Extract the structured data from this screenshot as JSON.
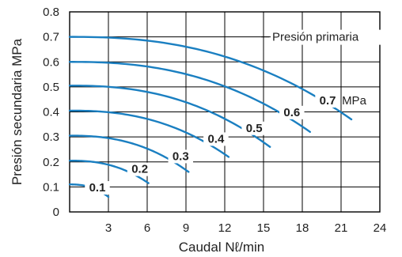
{
  "chart_data": {
    "type": "line",
    "xlabel": "Caudal Nℓ/min",
    "ylabel": "Presión secundaria MPa",
    "xlim": [
      0,
      24
    ],
    "ylim": [
      0,
      0.8
    ],
    "x_ticks": [
      "3",
      "6",
      "9",
      "12",
      "15",
      "18",
      "21",
      "24"
    ],
    "y_ticks": [
      "0",
      "0.1",
      "0.2",
      "0.3",
      "0.4",
      "0.5",
      "0.6",
      "0.7",
      "0.8"
    ],
    "grid": true,
    "annotation": "Presión primaria",
    "unit_label": "MPa",
    "colors": {
      "line": "#1a7fc1",
      "grid": "#000000"
    },
    "series": [
      {
        "name": "0.1",
        "label": "0.1",
        "start": 0.11,
        "x_end": 3.0,
        "y_end": 0.06
      },
      {
        "name": "0.2",
        "label": "0.2",
        "start": 0.205,
        "x_end": 6.1,
        "y_end": 0.115
      },
      {
        "name": "0.3",
        "label": "0.3",
        "start": 0.305,
        "x_end": 9.2,
        "y_end": 0.16
      },
      {
        "name": "0.4",
        "label": "0.4",
        "start": 0.405,
        "x_end": 12.3,
        "y_end": 0.22
      },
      {
        "name": "0.5",
        "label": "0.5",
        "start": 0.505,
        "x_end": 15.5,
        "y_end": 0.26
      },
      {
        "name": "0.6",
        "label": "0.6",
        "start": 0.6,
        "x_end": 18.6,
        "y_end": 0.32
      },
      {
        "name": "0.7",
        "label": "0.7",
        "start": 0.7,
        "x_end": 21.8,
        "y_end": 0.37
      }
    ]
  }
}
